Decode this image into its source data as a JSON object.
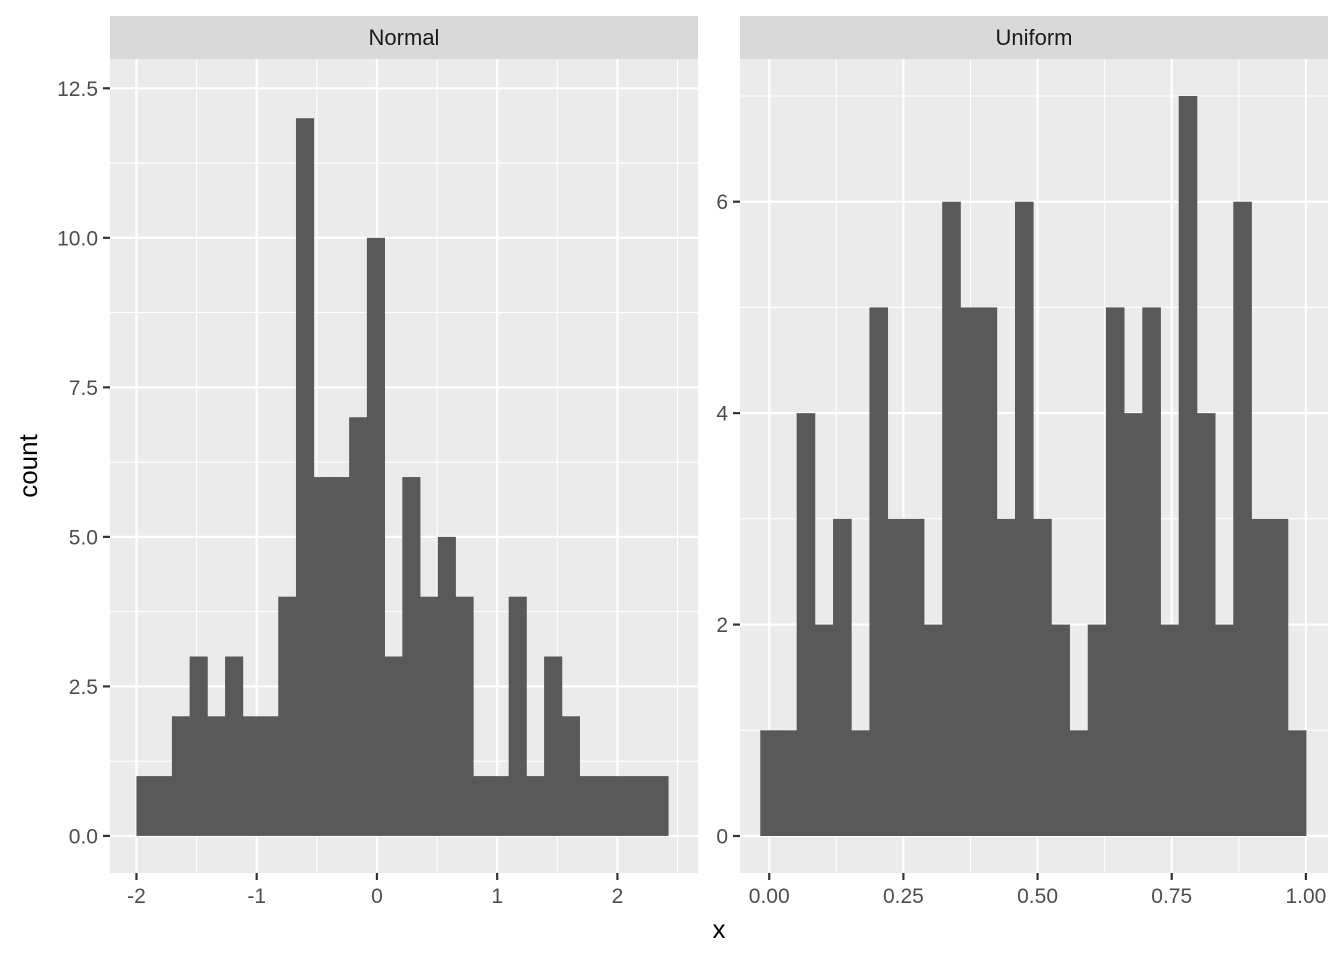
{
  "chart_data": {
    "type": "bar",
    "xlabel": "x",
    "ylabel": "count",
    "bar_color": "#595959",
    "panel_background": "#ebebeb",
    "strip_background": "#d9d9d9",
    "grid": true,
    "facets": [
      {
        "name": "Normal",
        "xlim": [
          -2.22,
          2.67
        ],
        "ylim": [
          -0.62,
          12.99
        ],
        "x_ticks": [
          -2,
          -1,
          0,
          1,
          2
        ],
        "x_tick_labels": [
          "-2",
          "-1",
          "0",
          "1",
          "2"
        ],
        "y_ticks": [
          0,
          2.5,
          5,
          7.5,
          10,
          12.5
        ],
        "y_tick_labels": [
          "0.0",
          "2.5",
          "5.0",
          "7.5",
          "10.0",
          "12.5"
        ],
        "bin_start": -2.0,
        "bin_width": 0.1474,
        "counts": [
          1,
          1,
          2,
          3,
          2,
          3,
          2,
          2,
          4,
          12,
          6,
          6,
          7,
          10,
          3,
          6,
          4,
          5,
          4,
          1,
          1,
          4,
          1,
          3,
          2,
          1,
          1,
          1,
          1,
          1
        ]
      },
      {
        "name": "Uniform",
        "xlim": [
          -0.0545,
          1.0412
        ],
        "ylim": [
          -0.35,
          7.35
        ],
        "x_ticks": [
          0,
          0.25,
          0.5,
          0.75,
          1
        ],
        "x_tick_labels": [
          "0.00",
          "0.25",
          "0.50",
          "0.75",
          "1.00"
        ],
        "y_ticks": [
          0,
          2,
          4,
          6
        ],
        "y_tick_labels": [
          "0",
          "2",
          "4",
          "6"
        ],
        "bin_start": -0.0167,
        "bin_width": 0.0339,
        "counts": [
          1,
          1,
          4,
          2,
          3,
          1,
          5,
          3,
          3,
          2,
          6,
          5,
          5,
          3,
          6,
          3,
          2,
          1,
          2,
          5,
          4,
          5,
          2,
          7,
          4,
          2,
          6,
          3,
          3,
          1
        ]
      }
    ]
  }
}
